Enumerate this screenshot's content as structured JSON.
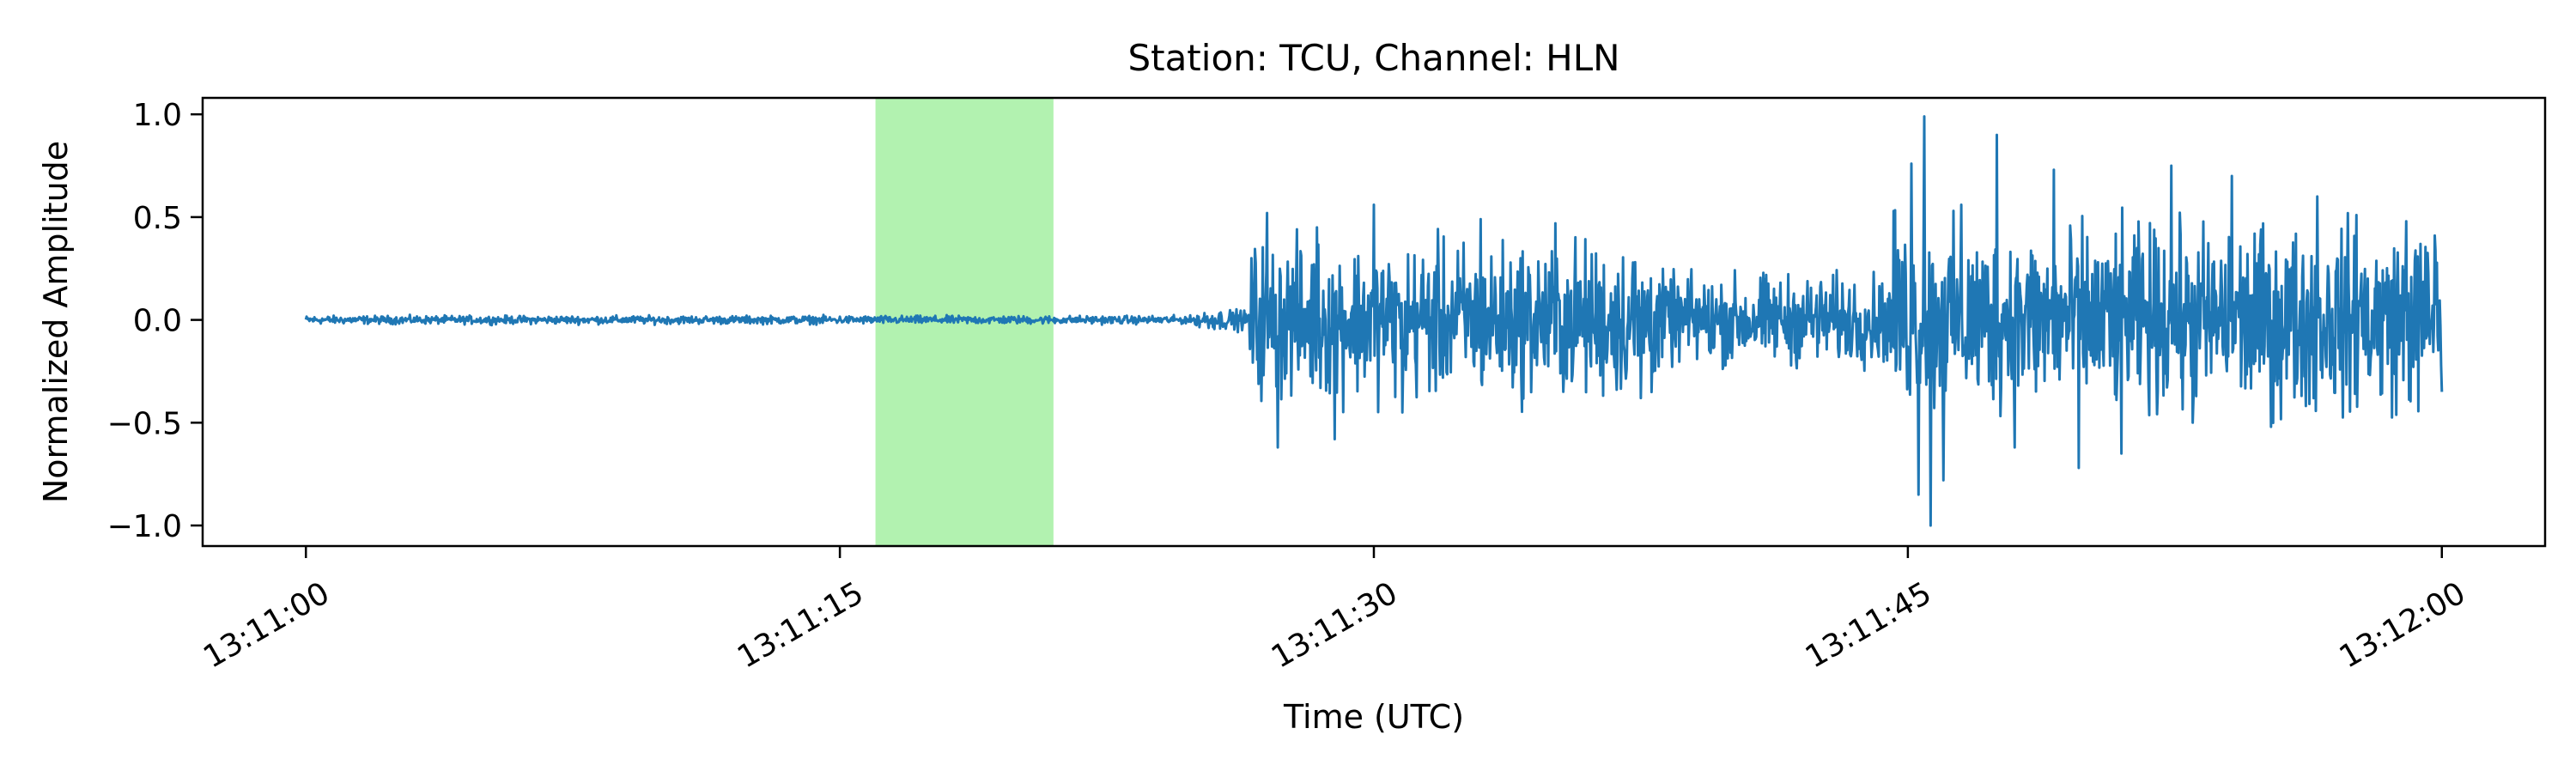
{
  "chart_data": {
    "type": "line",
    "title": "Station: TCU, Channel: HLN",
    "xlabel": "Time (UTC)",
    "ylabel": "Normalized Amplitude",
    "x_range_seconds_after_13_11_00": [
      -2.9,
      62.9
    ],
    "xlim_labels": [
      "13:10:57",
      "13:12:03"
    ],
    "ylim": [
      -1.1,
      1.08
    ],
    "x_ticks": [
      {
        "label": "13:11:00",
        "seconds": 0
      },
      {
        "label": "13:11:15",
        "seconds": 15
      },
      {
        "label": "13:11:30",
        "seconds": 30
      },
      {
        "label": "13:11:45",
        "seconds": 45
      },
      {
        "label": "13:12:00",
        "seconds": 60
      }
    ],
    "y_ticks": [
      {
        "label": "1.0",
        "value": 1.0
      },
      {
        "label": "0.5",
        "value": 0.5
      },
      {
        "label": "0.0",
        "value": 0.0
      },
      {
        "label": "−0.5",
        "value": -0.5
      },
      {
        "label": "−1.0",
        "value": -1.0
      }
    ],
    "highlight_window": {
      "start_seconds": 16.0,
      "end_seconds": 21.0,
      "color": "#b2f2b0"
    },
    "grid": false,
    "series": [
      {
        "color": "#1f77b4",
        "segments": [
          {
            "start": 0.0,
            "end": 25.0,
            "amplitude": 0.02
          },
          {
            "start": 25.0,
            "end": 26.5,
            "amplitude": 0.05
          },
          {
            "start": 26.5,
            "end": 38.0,
            "amplitude": 0.38
          },
          {
            "start": 38.0,
            "end": 44.5,
            "amplitude": 0.22
          },
          {
            "start": 44.5,
            "end": 60.0,
            "amplitude": 0.45
          }
        ],
        "peaks": [
          {
            "t": 27.0,
            "y": 0.52
          },
          {
            "t": 27.3,
            "y": -0.62
          },
          {
            "t": 28.4,
            "y": 0.45
          },
          {
            "t": 28.9,
            "y": -0.58
          },
          {
            "t": 30.0,
            "y": 0.56
          },
          {
            "t": 30.8,
            "y": -0.45
          },
          {
            "t": 33.0,
            "y": 0.49
          },
          {
            "t": 35.1,
            "y": 0.47
          },
          {
            "t": 37.5,
            "y": -0.38
          },
          {
            "t": 44.6,
            "y": 0.53
          },
          {
            "t": 45.1,
            "y": 0.76
          },
          {
            "t": 45.3,
            "y": -0.85
          },
          {
            "t": 45.45,
            "y": 0.99
          },
          {
            "t": 45.65,
            "y": -1.0
          },
          {
            "t": 46.0,
            "y": -0.78
          },
          {
            "t": 46.5,
            "y": 0.56
          },
          {
            "t": 47.5,
            "y": 0.9
          },
          {
            "t": 48.0,
            "y": -0.62
          },
          {
            "t": 49.1,
            "y": 0.73
          },
          {
            "t": 49.8,
            "y": -0.72
          },
          {
            "t": 51.0,
            "y": -0.65
          },
          {
            "t": 52.4,
            "y": 0.75
          },
          {
            "t": 53.0,
            "y": -0.5
          },
          {
            "t": 54.1,
            "y": 0.7
          },
          {
            "t": 55.2,
            "y": -0.52
          },
          {
            "t": 56.5,
            "y": 0.6
          },
          {
            "t": 57.6,
            "y": 0.51
          },
          {
            "t": 59.0,
            "y": 0.48
          },
          {
            "t": 59.8,
            "y": 0.41
          },
          {
            "t": 60.0,
            "y": -0.35
          }
        ]
      }
    ]
  }
}
